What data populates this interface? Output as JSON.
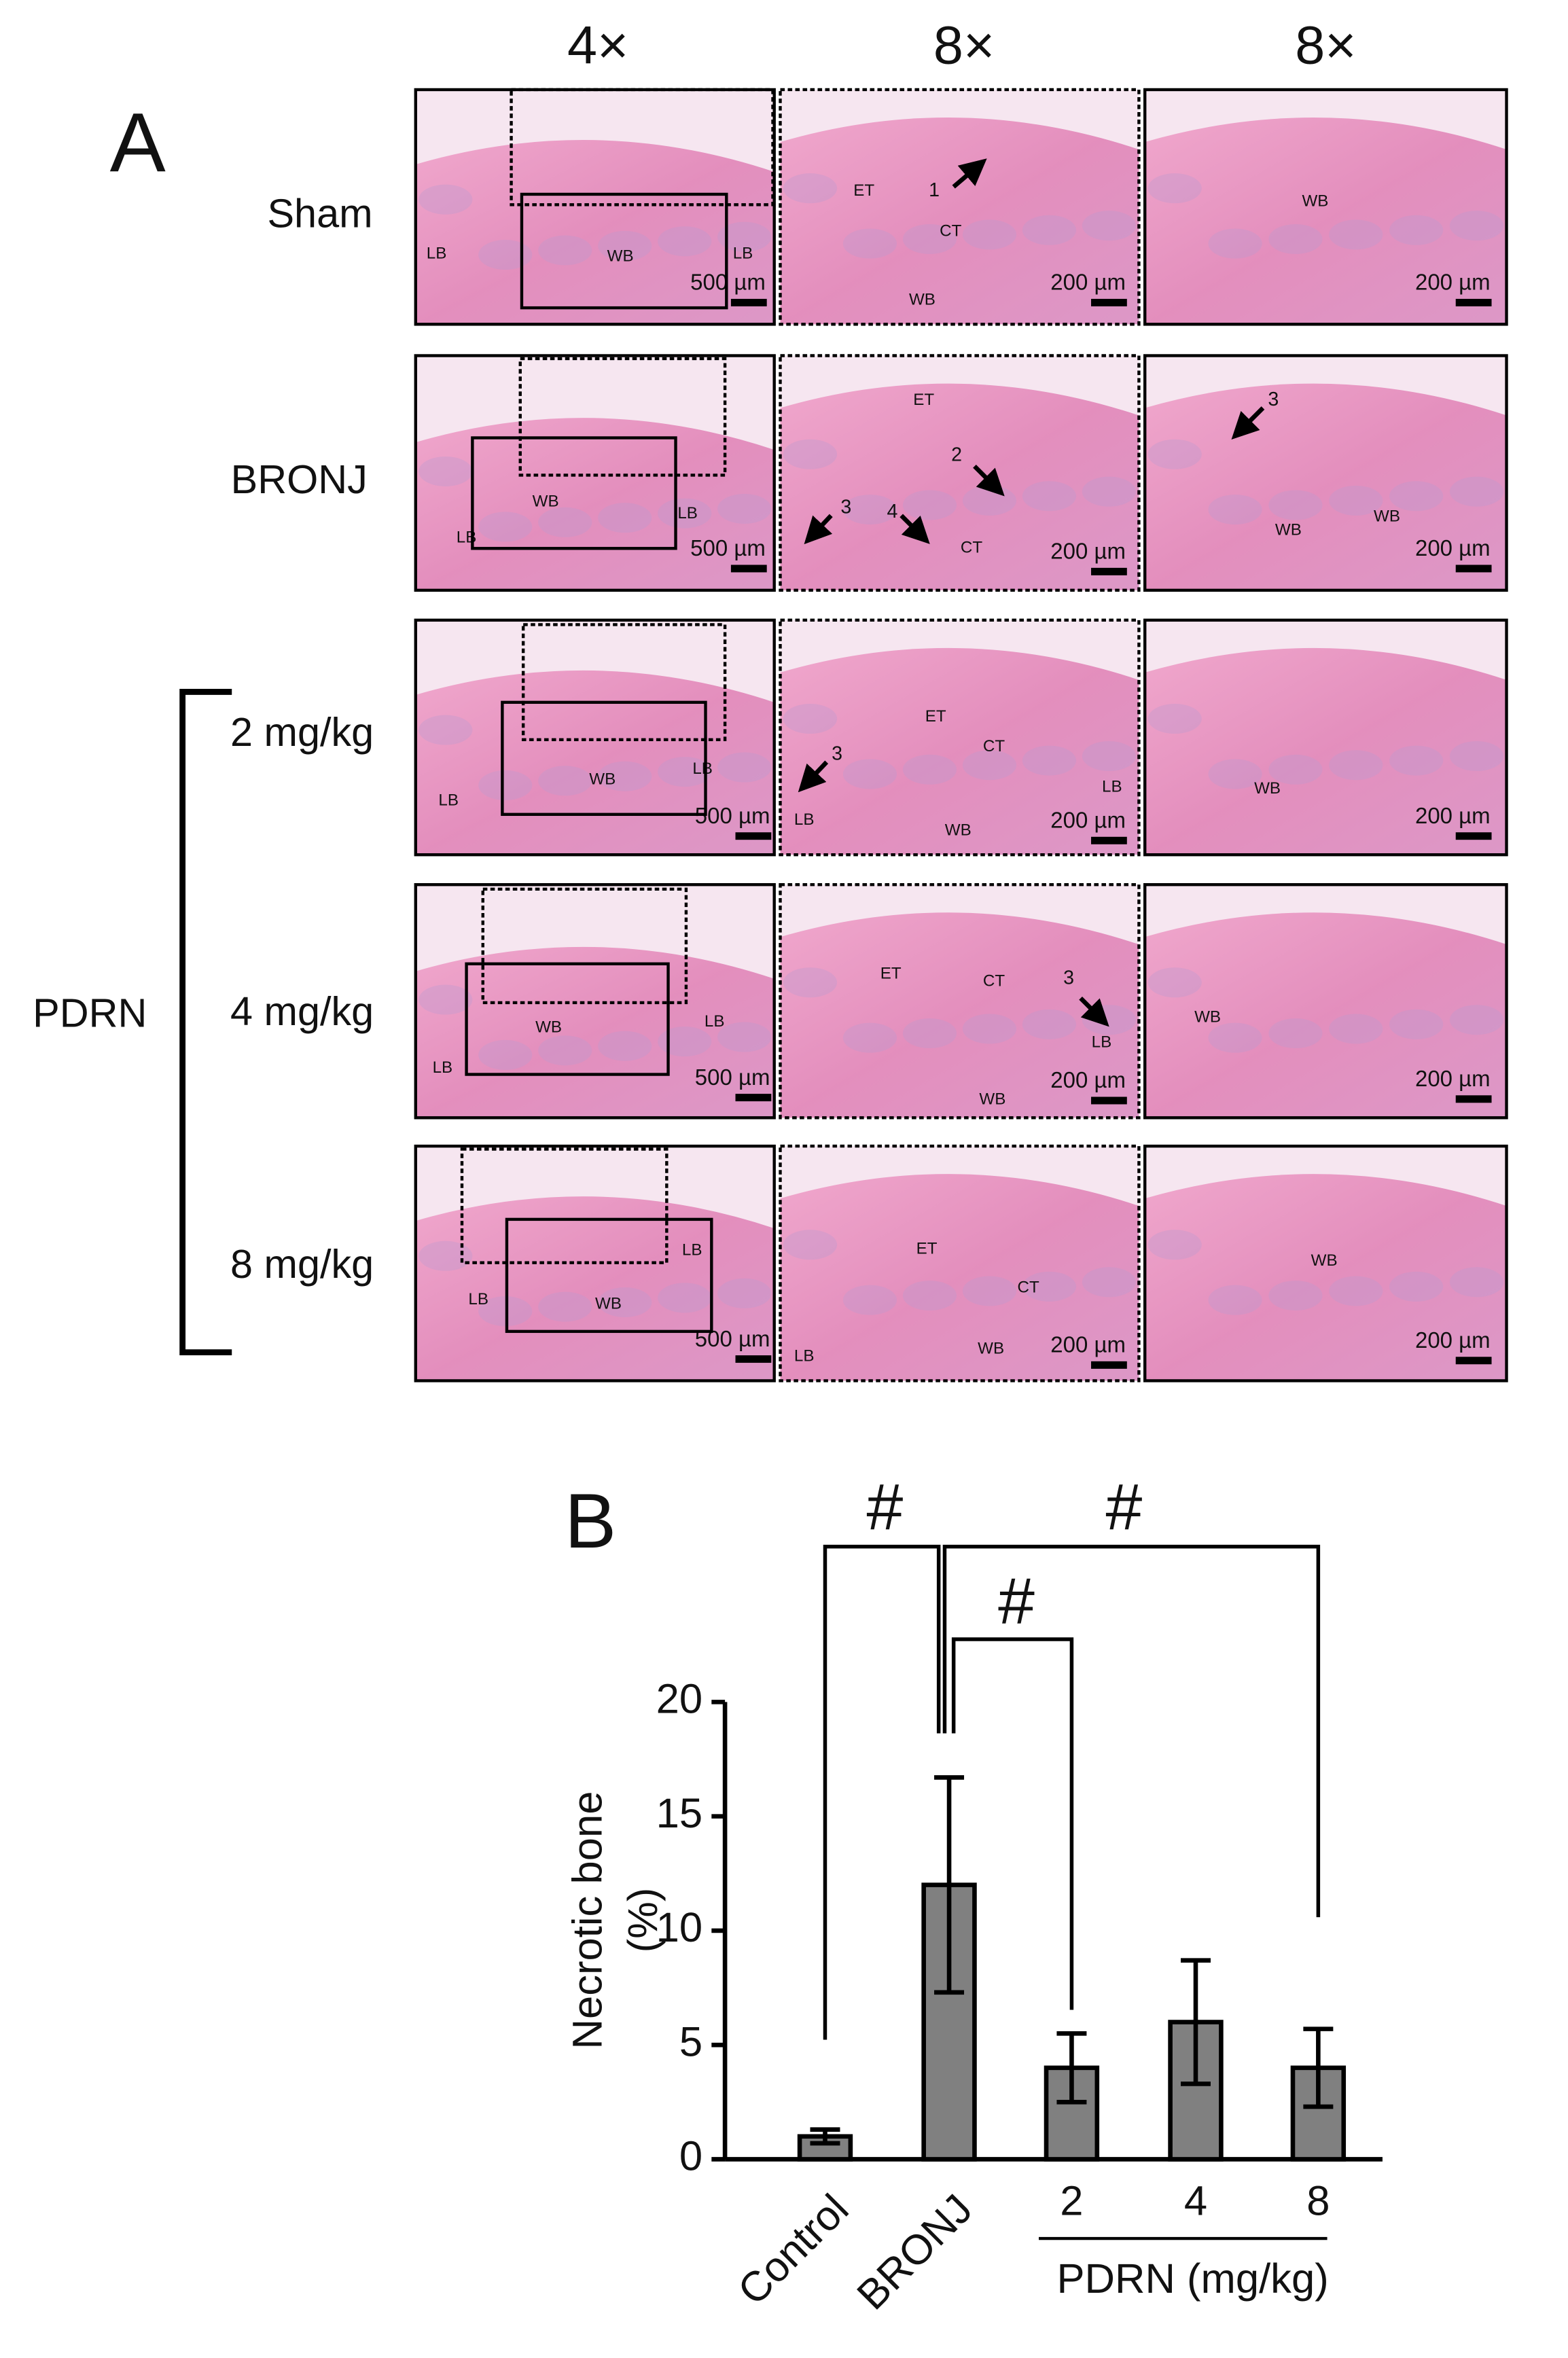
{
  "panel_a": {
    "label": "A",
    "columns": [
      "4×",
      "8×",
      "8×"
    ],
    "group_label": "PDRN",
    "rows": [
      {
        "label": "Sham",
        "cells": [
          [
            "LB",
            "WB",
            "LB",
            "500 µm"
          ],
          [
            "ET",
            "1",
            "CT",
            "WB",
            "200 µm"
          ],
          [
            "WB",
            "200 µm"
          ]
        ]
      },
      {
        "label": "BRONJ",
        "cells": [
          [
            "WB",
            "LB",
            "LB",
            "500 µm"
          ],
          [
            "ET",
            "2",
            "3",
            "4",
            "CT",
            "200 µm"
          ],
          [
            "3",
            "WB",
            "WB",
            "200 µm"
          ]
        ]
      },
      {
        "label": "2 mg/kg",
        "cells": [
          [
            "LB",
            "WB",
            "LB",
            "500 µm"
          ],
          [
            "ET",
            "CT",
            "3",
            "LB",
            "LB",
            "WB",
            "200 µm"
          ],
          [
            "WB",
            "200 µm"
          ]
        ]
      },
      {
        "label": "4 mg/kg",
        "cells": [
          [
            "WB",
            "LB",
            "LB",
            "500 µm"
          ],
          [
            "ET",
            "CT",
            "3",
            "LB",
            "WB",
            "200 µm"
          ],
          [
            "WB",
            "200 µm"
          ]
        ]
      },
      {
        "label": "8 mg/kg",
        "cells": [
          [
            "LB",
            "LB",
            "WB",
            "500 µm"
          ],
          [
            "ET",
            "CT",
            "LB",
            "WB",
            "200 µm"
          ],
          [
            "WB",
            "200 µm"
          ]
        ]
      }
    ]
  },
  "chart_data": {
    "type": "bar",
    "panel_label": "B",
    "ylabel": "Necrotic bone",
    "ylabel_unit": "(%)",
    "categories": [
      "Control",
      "BRONJ",
      "2",
      "4",
      "8"
    ],
    "group_label": "PDRN (mg/kg)",
    "values": [
      1,
      12,
      4,
      6,
      4
    ],
    "errors": [
      0.3,
      4.7,
      1.5,
      2.7,
      1.7
    ],
    "color": "#808080",
    "ylim": [
      0,
      20
    ],
    "yticks": [
      0,
      5,
      10,
      15,
      20
    ],
    "annotations": [
      "#",
      "#",
      "#"
    ]
  }
}
